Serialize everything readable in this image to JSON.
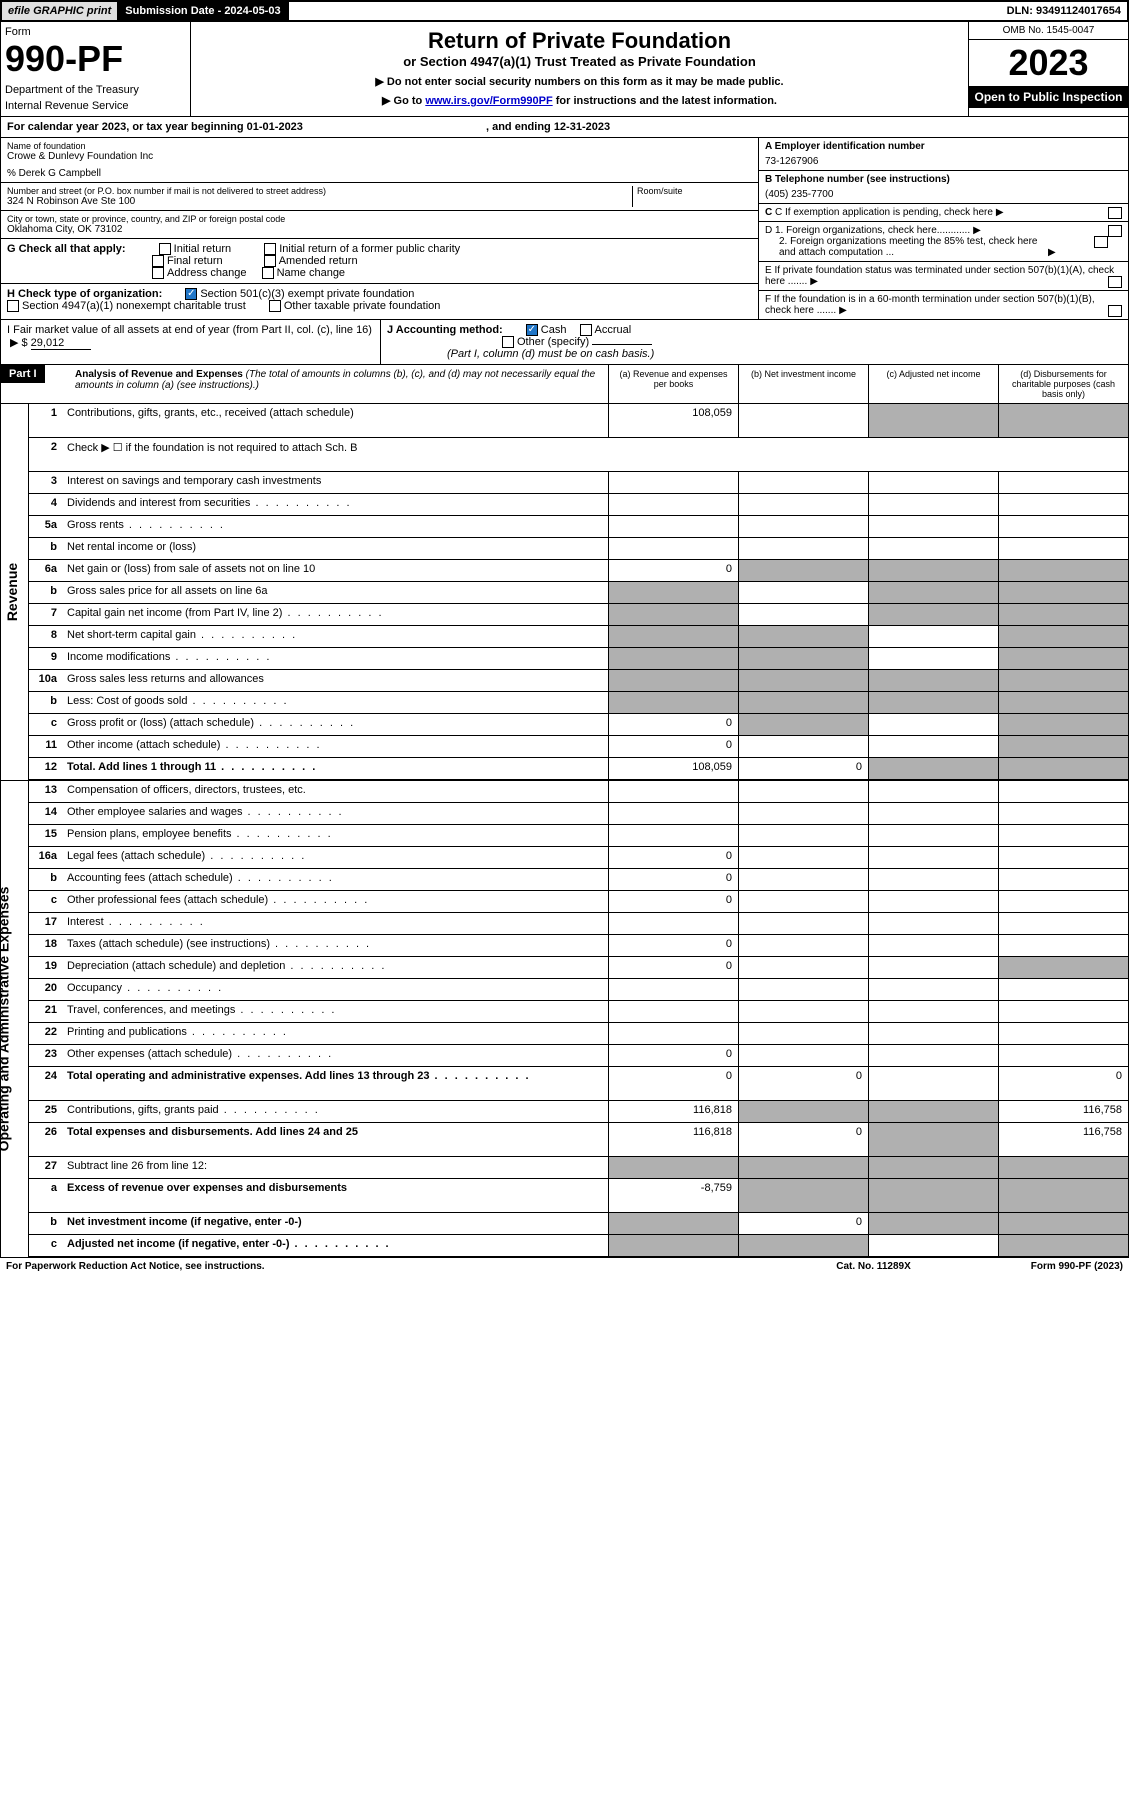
{
  "top": {
    "efile": "efile GRAPHIC print",
    "sub_label": "Submission Date - 2024-05-03",
    "dln": "DLN: 93491124017654"
  },
  "hdr": {
    "form_label": "Form",
    "form_no": "990-PF",
    "dept1": "Department of the Treasury",
    "dept2": "Internal Revenue Service",
    "title": "Return of Private Foundation",
    "sub": "or Section 4947(a)(1) Trust Treated as Private Foundation",
    "note1": "▶ Do not enter social security numbers on this form as it may be made public.",
    "note2_pre": "▶ Go to ",
    "note2_link": "www.irs.gov/Form990PF",
    "note2_post": " for instructions and the latest information.",
    "omb": "OMB No. 1545-0047",
    "year": "2023",
    "open": "Open to Public Inspection"
  },
  "cal": {
    "text_pre": "For calendar year 2023, or tax year beginning 01-01-2023",
    "text_mid": ", and ending 12-31-2023"
  },
  "info": {
    "name_label": "Name of foundation",
    "name": "Crowe & Dunlevy Foundation Inc",
    "care_of": "% Derek G Campbell",
    "addr_label": "Number and street (or P.O. box number if mail is not delivered to street address)",
    "addr": "324 N Robinson Ave Ste 100",
    "room_label": "Room/suite",
    "city_label": "City or town, state or province, country, and ZIP or foreign postal code",
    "city": "Oklahoma City, OK  73102",
    "a_label": "A Employer identification number",
    "a_val": "73-1267906",
    "b_label": "B Telephone number (see instructions)",
    "b_val": "(405) 235-7700",
    "c_label": "C If exemption application is pending, check here",
    "d1": "D 1. Foreign organizations, check here............",
    "d2": "2. Foreign organizations meeting the 85% test, check here and attach computation ...",
    "e": "E  If private foundation status was terminated under section 507(b)(1)(A), check here .......",
    "f": "F  If the foundation is in a 60-month termination under section 507(b)(1)(B), check here .......",
    "g_label": "G Check all that apply:",
    "g_opts": [
      "Initial return",
      "Final return",
      "Address change",
      "Initial return of a former public charity",
      "Amended return",
      "Name change"
    ],
    "h_label": "H Check type of organization:",
    "h1": "Section 501(c)(3) exempt private foundation",
    "h2": "Section 4947(a)(1) nonexempt charitable trust",
    "h3": "Other taxable private foundation",
    "i_label": "I Fair market value of all assets at end of year (from Part II, col. (c), line 16)",
    "i_val": "29,012",
    "j_label": "J Accounting method:",
    "j_cash": "Cash",
    "j_accrual": "Accrual",
    "j_other": "Other (specify)",
    "j_note": "(Part I, column (d) must be on cash basis.)"
  },
  "part1": {
    "label": "Part I",
    "title": "Analysis of Revenue and Expenses",
    "title_note": "(The total of amounts in columns (b), (c), and (d) may not necessarily equal the amounts in column (a) (see instructions).)",
    "col_a": "(a)   Revenue and expenses per books",
    "col_b": "(b)   Net investment income",
    "col_c": "(c)   Adjusted net income",
    "col_d": "(d)  Disbursements for charitable purposes (cash basis only)"
  },
  "sides": {
    "rev": "Revenue",
    "exp": "Operating and Administrative Expenses"
  },
  "rows": [
    {
      "n": "1",
      "l": "Contributions, gifts, grants, etc., received (attach schedule)",
      "a": "108,059",
      "tall": true,
      "sd": true,
      "sc": true,
      "sb": false
    },
    {
      "n": "2",
      "l": "Check ▶ ☐ if the foundation is not required to attach Sch. B",
      "nocols": true,
      "tall": true
    },
    {
      "n": "3",
      "l": "Interest on savings and temporary cash investments"
    },
    {
      "n": "4",
      "l": "Dividends and interest from securities",
      "dots": true
    },
    {
      "n": "5a",
      "l": "Gross rents",
      "dots": true
    },
    {
      "n": "b",
      "l": "Net rental income or (loss)",
      "inset": true
    },
    {
      "n": "6a",
      "l": "Net gain or (loss) from sale of assets not on line 10",
      "a": "0",
      "sd": true,
      "sc": true,
      "sb": true
    },
    {
      "n": "b",
      "l": "Gross sales price for all assets on line 6a",
      "inset": true,
      "sd": true,
      "sc": true,
      "sa": true
    },
    {
      "n": "7",
      "l": "Capital gain net income (from Part IV, line 2)",
      "dots": true,
      "sd": true,
      "sc": true,
      "sa": true
    },
    {
      "n": "8",
      "l": "Net short-term capital gain",
      "dots": true,
      "sd": true,
      "sb": true,
      "sa": true
    },
    {
      "n": "9",
      "l": "Income modifications",
      "dots": true,
      "sd": true,
      "sb": true,
      "sa": true
    },
    {
      "n": "10a",
      "l": "Gross sales less returns and allowances",
      "inset": true,
      "sd": true,
      "sc": true,
      "sb": true,
      "sa": true
    },
    {
      "n": "b",
      "l": "Less: Cost of goods sold",
      "dots": true,
      "inset": true,
      "sd": true,
      "sc": true,
      "sb": true,
      "sa": true
    },
    {
      "n": "c",
      "l": "Gross profit or (loss) (attach schedule)",
      "dots": true,
      "a": "0",
      "sd": true,
      "sb": true
    },
    {
      "n": "11",
      "l": "Other income (attach schedule)",
      "dots": true,
      "a": "0",
      "sd": true
    },
    {
      "n": "12",
      "l": "Total. Add lines 1 through 11",
      "dots": true,
      "bold": true,
      "a": "108,059",
      "b": "0",
      "sd": true,
      "sc": true
    }
  ],
  "exp_rows": [
    {
      "n": "13",
      "l": "Compensation of officers, directors, trustees, etc."
    },
    {
      "n": "14",
      "l": "Other employee salaries and wages",
      "dots": true
    },
    {
      "n": "15",
      "l": "Pension plans, employee benefits",
      "dots": true
    },
    {
      "n": "16a",
      "l": "Legal fees (attach schedule)",
      "dots": true,
      "a": "0"
    },
    {
      "n": "b",
      "l": "Accounting fees (attach schedule)",
      "dots": true,
      "a": "0"
    },
    {
      "n": "c",
      "l": "Other professional fees (attach schedule)",
      "dots": true,
      "a": "0"
    },
    {
      "n": "17",
      "l": "Interest",
      "dots": true
    },
    {
      "n": "18",
      "l": "Taxes (attach schedule) (see instructions)",
      "dots": true,
      "a": "0"
    },
    {
      "n": "19",
      "l": "Depreciation (attach schedule) and depletion",
      "dots": true,
      "a": "0",
      "sd": true
    },
    {
      "n": "20",
      "l": "Occupancy",
      "dots": true
    },
    {
      "n": "21",
      "l": "Travel, conferences, and meetings",
      "dots": true
    },
    {
      "n": "22",
      "l": "Printing and publications",
      "dots": true
    },
    {
      "n": "23",
      "l": "Other expenses (attach schedule)",
      "dots": true,
      "a": "0"
    },
    {
      "n": "24",
      "l": "Total operating and administrative expenses. Add lines 13 through 23",
      "dots": true,
      "bold": true,
      "tall": true,
      "a": "0",
      "b": "0",
      "d": "0"
    },
    {
      "n": "25",
      "l": "Contributions, gifts, grants paid",
      "dots": true,
      "a": "116,818",
      "d": "116,758",
      "sc": true,
      "sb": true
    },
    {
      "n": "26",
      "l": "Total expenses and disbursements. Add lines 24 and 25",
      "bold": true,
      "tall": true,
      "a": "116,818",
      "b": "0",
      "d": "116,758",
      "sc": true
    },
    {
      "n": "27",
      "l": "Subtract line 26 from line 12:",
      "sd": true,
      "sc": true,
      "sb": true,
      "sa": true
    },
    {
      "n": "a",
      "l": "Excess of revenue over expenses and disbursements",
      "bold": true,
      "tall": true,
      "a": "-8,759",
      "sd": true,
      "sc": true,
      "sb": true
    },
    {
      "n": "b",
      "l": "Net investment income (if negative, enter -0-)",
      "bold": true,
      "b": "0",
      "sd": true,
      "sc": true,
      "sa": true
    },
    {
      "n": "c",
      "l": "Adjusted net income (if negative, enter -0-)",
      "dots": true,
      "bold": true,
      "sd": true,
      "sb": true,
      "sa": true
    }
  ],
  "footer": {
    "left": "For Paperwork Reduction Act Notice, see instructions.",
    "mid": "Cat. No. 11289X",
    "right": "Form 990-PF (2023)"
  }
}
